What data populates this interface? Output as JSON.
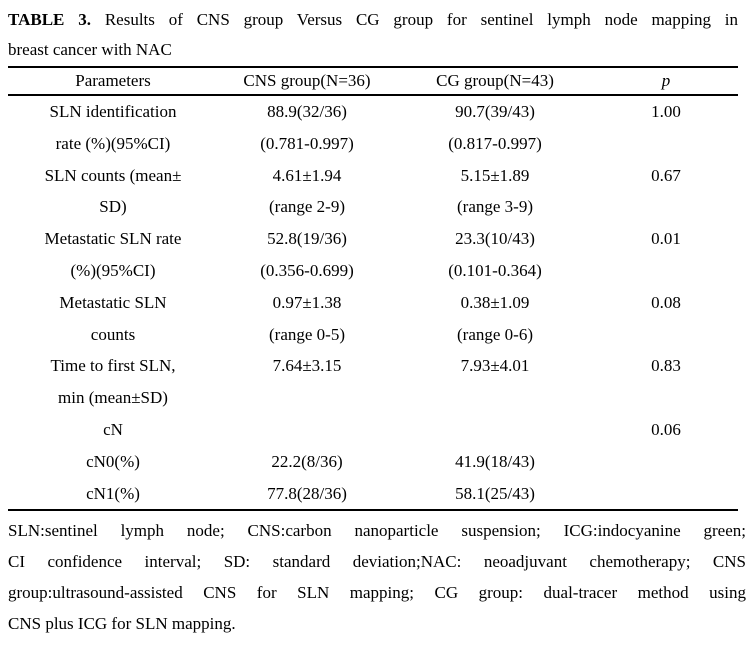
{
  "title": {
    "label_bold": "TABLE 3.",
    "line1_rest": "Results of CNS group Versus CG group for sentinel lymph node mapping in",
    "line2": "breast cancer with NAC"
  },
  "table": {
    "headers": {
      "param": "Parameters",
      "cns": "CNS group(N=36)",
      "cg": "CG group(N=43)",
      "p": "p"
    },
    "rows": [
      {
        "param": "SLN identification\nrate (%)(95%CI)",
        "cns": "88.9(32/36)\n(0.781-0.997)",
        "cg": "90.7(39/43)\n(0.817-0.997)",
        "p": "1.00"
      },
      {
        "param": "SLN counts (mean±\nSD)",
        "cns": "4.61±1.94\n(range 2-9)",
        "cg": "5.15±1.89\n(range 3-9)",
        "p": "0.67"
      },
      {
        "param": "Metastatic SLN rate\n(%)(95%CI)",
        "cns": "52.8(19/36)\n(0.356-0.699)",
        "cg": "23.3(10/43)\n(0.101-0.364)",
        "p": "0.01"
      },
      {
        "param": "Metastatic SLN\ncounts",
        "cns": "0.97±1.38\n(range 0-5)",
        "cg": "0.38±1.09\n(range 0-6)",
        "p": "0.08"
      },
      {
        "param": "Time to first SLN,\nmin (mean±SD)",
        "cns": "7.64±3.15",
        "cg": "7.93±4.01",
        "p": "0.83"
      },
      {
        "param": "cN",
        "cns": "",
        "cg": "",
        "p": "0.06"
      },
      {
        "param": "cN0(%)",
        "cns": "22.2(8/36)",
        "cg": "41.9(18/43)",
        "p": ""
      },
      {
        "param": "cN1(%)",
        "cns": "77.8(28/36)",
        "cg": "58.1(25/43)",
        "p": ""
      }
    ]
  },
  "footnote": {
    "lines": [
      "SLN:sentinel lymph node; CNS:carbon nanoparticle suspension; ICG:indocyanine green;",
      "CI confidence interval; SD: standard deviation;NAC: neoadjuvant chemotherapy; CNS",
      "group:ultrasound-assisted CNS for SLN mapping; CG group: dual-tracer method using",
      "CNS plus ICG for SLN mapping."
    ]
  },
  "colors": {
    "text": "#000000",
    "background": "#ffffff",
    "rule": "#000000"
  }
}
